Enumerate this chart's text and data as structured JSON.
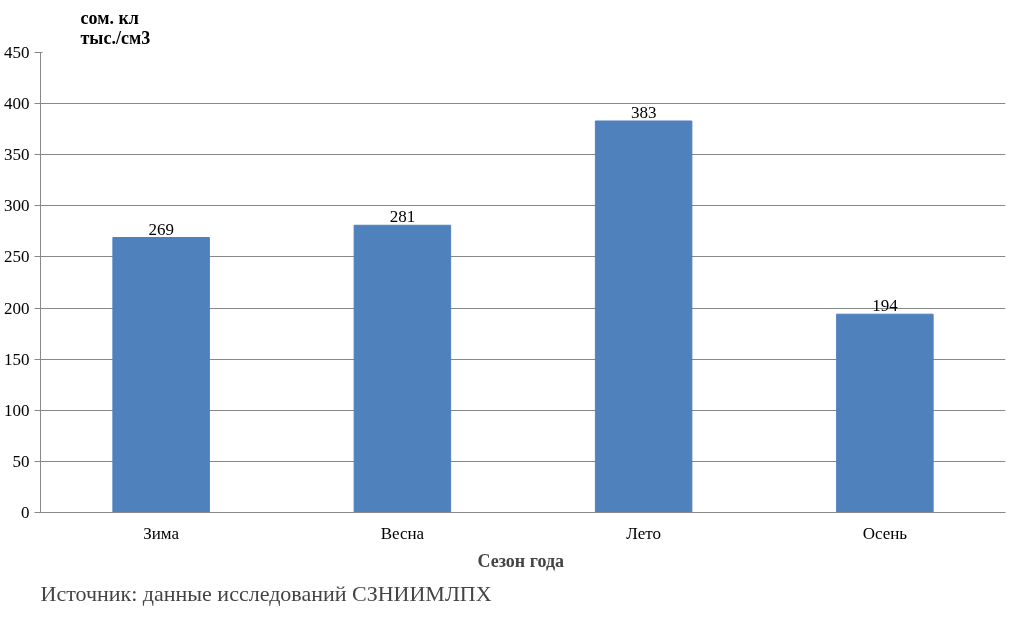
{
  "chart_data": {
    "type": "bar",
    "ylabel": "сом. кл\nтыс./см3",
    "xlabel": "Сезон  года",
    "categories": [
      "Зима",
      "Весна",
      "Лето",
      "Осень"
    ],
    "values": [
      269,
      281,
      383,
      194
    ],
    "color": "#4f81bd",
    "ylim": [
      0,
      450
    ],
    "yticks": [
      0,
      50,
      100,
      150,
      200,
      250,
      300,
      350,
      400,
      450
    ],
    "grid": "y",
    "data_labels": true,
    "annotations": [
      "Источник: данные исследований СЗНИИМЛПХ"
    ]
  }
}
